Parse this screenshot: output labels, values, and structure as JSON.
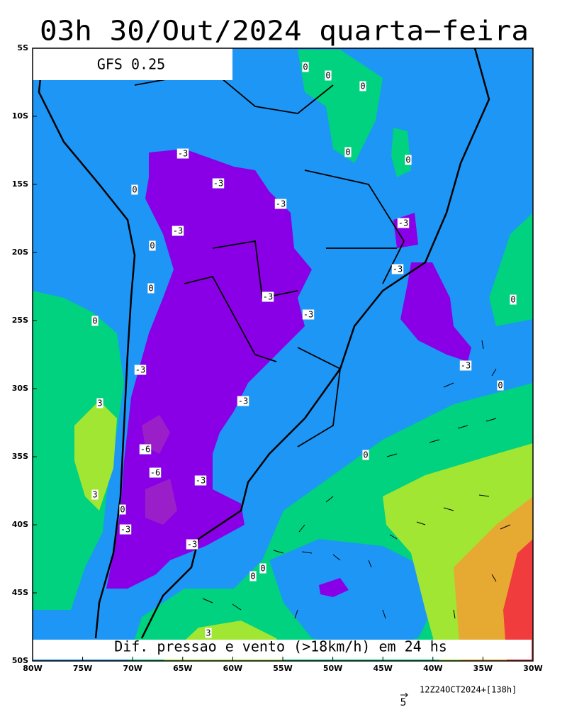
{
  "title": "03h 30/Out/2024 quarta−feira",
  "model": "GFS 0.25",
  "caption": "Dif. pressao e vento (>18km/h) em 24 hs",
  "lat_labels": [
    "5S",
    "10S",
    "15S",
    "20S",
    "25S",
    "30S",
    "35S",
    "40S",
    "45S",
    "50S"
  ],
  "lon_labels": [
    "80W",
    "75W",
    "70W",
    "65W",
    "60W",
    "55W",
    "50W",
    "45W",
    "40W",
    "35W",
    "30W"
  ],
  "contour_labels": [
    "0",
    "0",
    "0",
    "0",
    "0",
    "0",
    "0",
    "0",
    "0",
    "0",
    "0",
    "0",
    "0",
    "0",
    "0",
    "-3",
    "-3",
    "-3",
    "-3",
    "-3",
    "-3",
    "-3",
    "-3",
    "-3",
    "-3",
    "-3",
    "-3",
    "-3",
    "-3",
    "3",
    "3",
    "-6",
    "-6",
    "3"
  ],
  "vector_scale": "5",
  "run": "12Z24OCT2024+[138h]"
}
